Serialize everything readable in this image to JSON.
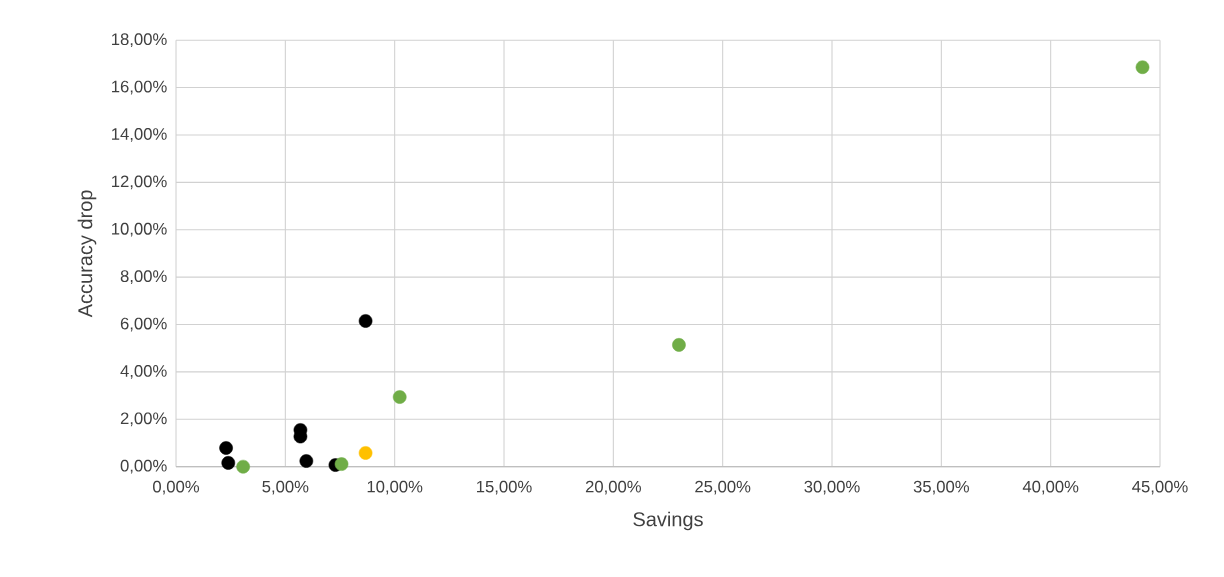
{
  "chart_data": {
    "type": "scatter",
    "xlabel": "Savings",
    "ylabel": "Accuracy drop",
    "series": [
      {
        "color": "#000000",
        "x": [
          2.29,
          2.39,
          5.69,
          5.69,
          5.96,
          7.29,
          8.67
        ],
        "values": [
          0.79,
          0.16,
          1.55,
          1.27,
          0.24,
          0.07,
          6.15
        ]
      },
      {
        "color": "#70ad47",
        "x": [
          3.07,
          7.57,
          10.23,
          23.0,
          44.2
        ],
        "values": [
          0.0,
          0.11,
          2.94,
          5.14,
          16.86
        ]
      },
      {
        "color": "#ffc000",
        "x": [
          8.67
        ],
        "values": [
          0.58
        ]
      }
    ],
    "xlim": [
      0,
      45
    ],
    "ylim": [
      0,
      18
    ],
    "xticks": [
      {
        "value": 0,
        "label": "0,00%"
      },
      {
        "value": 5,
        "label": "5,00%"
      },
      {
        "value": 10,
        "label": "10,00%"
      },
      {
        "value": 15,
        "label": "15,00%"
      },
      {
        "value": 20,
        "label": "20,00%"
      },
      {
        "value": 25,
        "label": "25,00%"
      },
      {
        "value": 30,
        "label": "30,00%"
      },
      {
        "value": 35,
        "label": "35,00%"
      },
      {
        "value": 40,
        "label": "40,00%"
      },
      {
        "value": 45,
        "label": "45,00%"
      }
    ],
    "yticks": [
      {
        "value": 0,
        "label": "0,00%"
      },
      {
        "value": 2,
        "label": "2,00%"
      },
      {
        "value": 4,
        "label": "4,00%"
      },
      {
        "value": 6,
        "label": "6,00%"
      },
      {
        "value": 8,
        "label": "8,00%"
      },
      {
        "value": 10,
        "label": "10,00%"
      },
      {
        "value": 12,
        "label": "12,00%"
      },
      {
        "value": 14,
        "label": "14,00%"
      },
      {
        "value": 16,
        "label": "16,00%"
      },
      {
        "value": 18,
        "label": "18,00%"
      }
    ],
    "grid": true,
    "marker": "circle"
  }
}
